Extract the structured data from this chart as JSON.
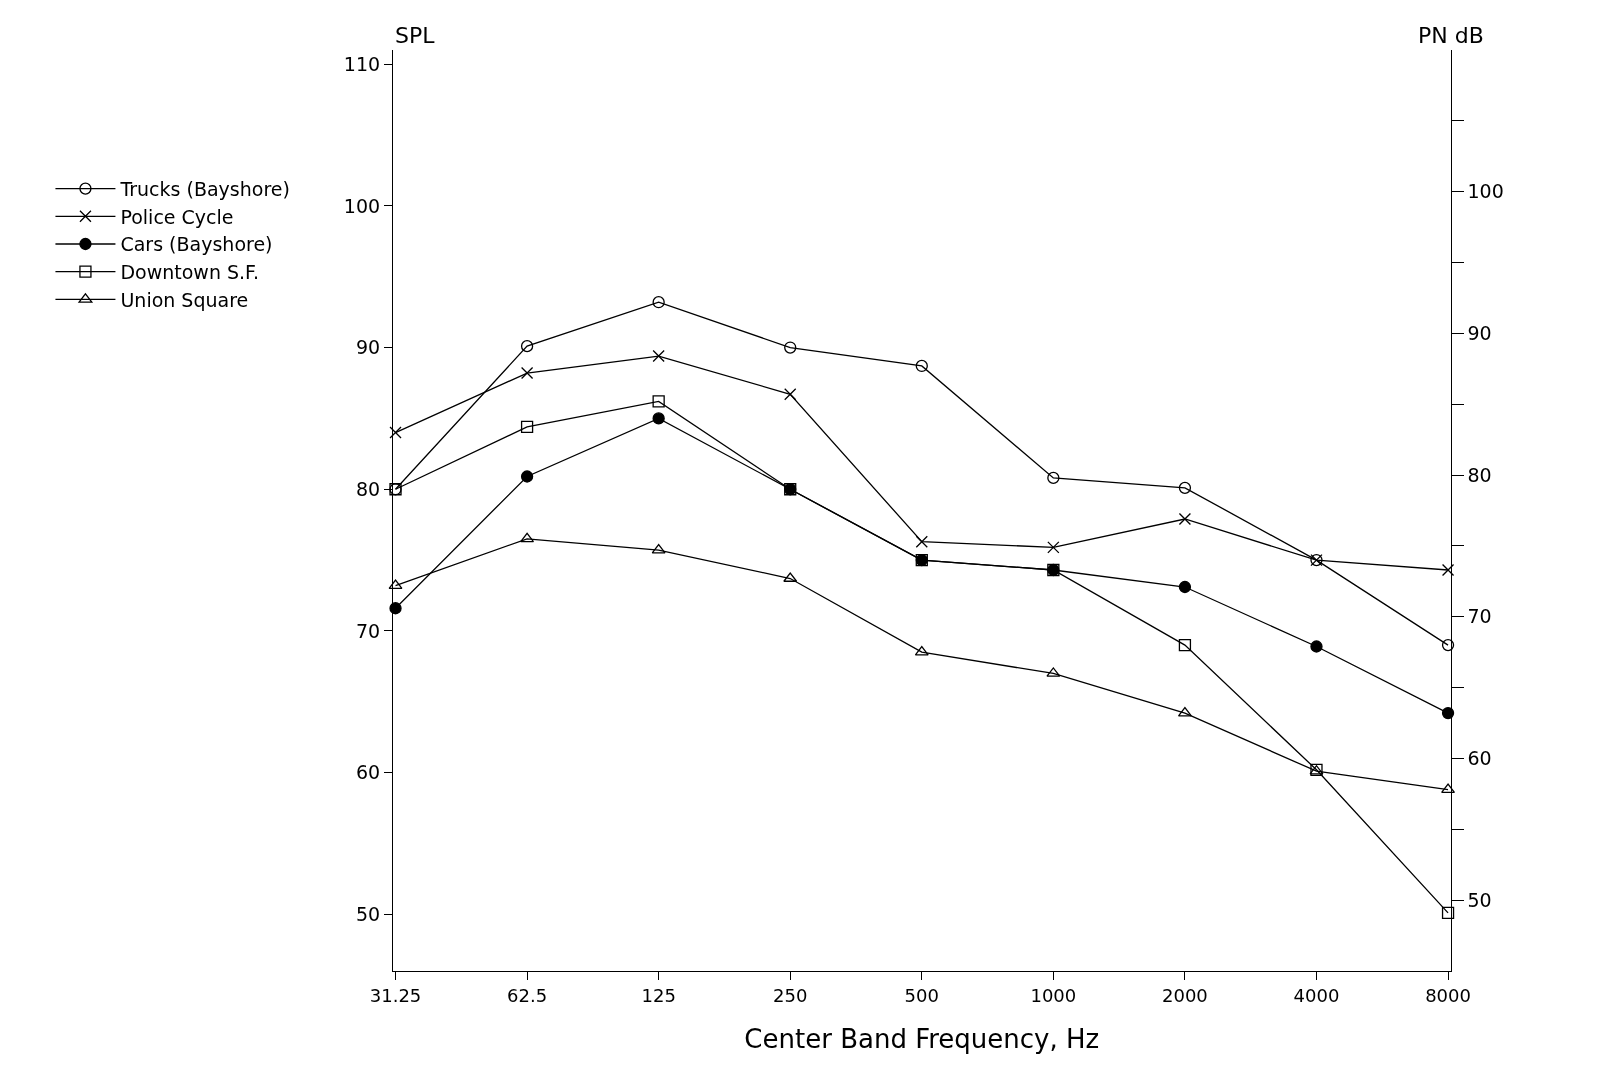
{
  "chart_data": {
    "type": "line",
    "xlabel": "Center Band Frequency, Hz",
    "ylabel": "SPL",
    "y2label": "PN dB",
    "categories": [
      "31.25",
      "62.5",
      "125",
      "250",
      "500",
      "1000",
      "2000",
      "4000",
      "8000"
    ],
    "ylim": [
      46,
      111
    ],
    "yticks": [
      50,
      60,
      70,
      80,
      90,
      100,
      110
    ],
    "y2lim": [
      45,
      110
    ],
    "y2ticks": [
      50,
      {
        "value": 55,
        "label": null
      },
      60,
      {
        "value": 65,
        "label": null
      },
      70,
      {
        "value": 75,
        "label": null
      },
      80,
      {
        "value": 85,
        "label": null
      },
      90,
      {
        "value": 95,
        "label": null
      },
      100,
      {
        "value": 105,
        "label": null
      }
    ],
    "grid": false,
    "legend": "top left",
    "line_style": "solid",
    "series": [
      {
        "name": "Trucks (Bayshore)",
        "color": "#000000",
        "marker": "circle",
        "values": [
          80.0,
          90.1,
          93.2,
          90.0,
          88.7,
          80.8,
          80.1,
          75.0,
          69.0
        ]
      },
      {
        "name": "Police Cycle",
        "color": "#000000",
        "marker": "cross",
        "values": [
          84.0,
          88.2,
          89.4,
          86.7,
          76.3,
          75.9,
          77.9,
          75.0,
          74.3
        ]
      },
      {
        "name": "Cars (Bayshore)",
        "color": "#000000",
        "marker": "circle",
        "values": [
          71.6,
          80.9,
          85.0,
          80.0,
          75.0,
          74.3,
          73.1,
          68.9,
          64.2
        ]
      },
      {
        "name": "Downtown S.F.",
        "color": "#000000",
        "marker": "square",
        "values": [
          80.0,
          84.4,
          86.2,
          80.0,
          75.0,
          74.3,
          69.0,
          60.2,
          50.1
        ]
      },
      {
        "name": "Union Square",
        "color": "#000000",
        "marker": "triangle",
        "values": [
          73.2,
          76.5,
          75.7,
          73.7,
          68.5,
          67.0,
          64.2,
          60.1,
          58.8
        ]
      }
    ]
  }
}
